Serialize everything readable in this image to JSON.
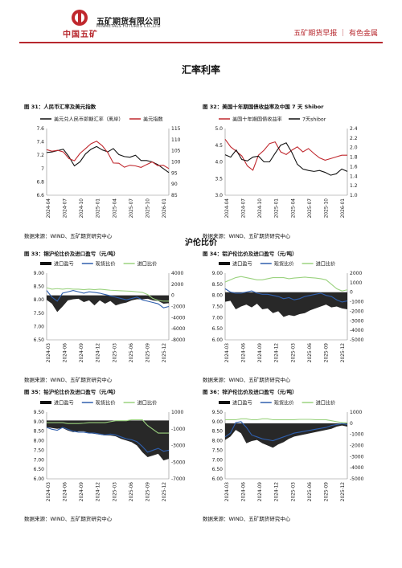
{
  "header": {
    "logo_text": "中国五矿",
    "company_cn": "五矿期货有限公司",
    "company_en": "MINMETALS FUTURES CO.,LTD",
    "report_tag": "五矿期货早报 ｜ 有色金属"
  },
  "sections": {
    "fx_title": "汇率利率",
    "lh_title": "沪伦比价"
  },
  "source_text": "数据来源：WIND、五矿期货研究中心",
  "figures": [
    {
      "title": "图 31：人民币汇率及美元指数"
    },
    {
      "title": "图 32：美国十年期国债收益率及中国 7 天 Shibor"
    },
    {
      "title": "图 33：铜沪伦比价及进口盈亏（元/吨）"
    },
    {
      "title": "图 34：铝沪伦比价及进口盈亏（元/吨）"
    },
    {
      "title": "图 35：铅沪伦比价及进口盈亏（元/吨）"
    },
    {
      "title": "图 36：锌沪伦比价及进口盈亏（元/吨）"
    }
  ],
  "chart_data": [
    {
      "type": "line",
      "legend": [
        "美元兑人民币即期汇率（离岸）",
        "美元指数"
      ],
      "colors": [
        "#111111",
        "#c0282e"
      ],
      "x_ticks": [
        "2024-04",
        "2024-07",
        "2024-10",
        "2025-01",
        "2025-04",
        "2025-07",
        "2025-10",
        "2026-01"
      ],
      "left_ticks": [
        "7.6",
        "7.4",
        "7.2",
        "7",
        "6.8",
        "6.6"
      ],
      "right_ticks": [
        "115",
        "110",
        "105",
        "100",
        "95",
        "90",
        "85"
      ],
      "ylim_left": [
        6.6,
        7.6
      ],
      "ylim_right": [
        85,
        115
      ],
      "x": [
        "2024-04",
        "2024-05",
        "2024-06",
        "2024-07",
        "2024-08",
        "2024-09",
        "2024-10",
        "2024-11",
        "2024-12",
        "2025-01",
        "2025-02",
        "2025-03",
        "2025-04",
        "2025-05",
        "2025-06",
        "2025-07",
        "2025-08",
        "2025-09",
        "2025-10",
        "2025-11",
        "2025-12",
        "2026-01",
        "2026-02"
      ],
      "series": [
        {
          "name": "美元兑人民币即期汇率（离岸）",
          "axis": "left",
          "values": [
            7.24,
            7.25,
            7.27,
            7.29,
            7.18,
            7.04,
            7.1,
            7.22,
            7.29,
            7.33,
            7.28,
            7.25,
            7.3,
            7.21,
            7.18,
            7.17,
            7.2,
            7.12,
            7.12,
            7.1,
            7.06,
            7.0,
            6.94
          ]
        },
        {
          "name": "美元指数",
          "axis": "right",
          "values": [
            105.5,
            104.8,
            105.2,
            104.5,
            101.5,
            100.5,
            103.8,
            106.0,
            108.2,
            109.3,
            107.3,
            104.2,
            99.5,
            99.4,
            97.6,
            98.5,
            98.2,
            97.5,
            98.8,
            100.0,
            98.3,
            98.5,
            97.0
          ]
        }
      ]
    },
    {
      "type": "line",
      "legend": [
        "美国十年期国债收益率",
        "7天shibor"
      ],
      "colors": [
        "#c0282e",
        "#111111"
      ],
      "x_ticks": [
        "2024-04",
        "2024-07",
        "2024-10",
        "2025-01",
        "2025-04",
        "2025-07",
        "2025-10",
        "2026-01"
      ],
      "left_ticks": [
        "5.0",
        "4.5",
        "4.0",
        "3.5",
        "3.0"
      ],
      "right_ticks": [
        "2.4",
        "2.2",
        "2.0",
        "1.8",
        "1.6",
        "1.4",
        "1.2",
        "1.0"
      ],
      "ylim_left": [
        3.0,
        5.0
      ],
      "ylim_right": [
        1.0,
        2.4
      ],
      "x": [
        "2024-04",
        "2024-05",
        "2024-06",
        "2024-07",
        "2024-08",
        "2024-09",
        "2024-10",
        "2024-11",
        "2024-12",
        "2025-01",
        "2025-02",
        "2025-03",
        "2025-04",
        "2025-05",
        "2025-06",
        "2025-07",
        "2025-08",
        "2025-09",
        "2025-10",
        "2025-11",
        "2025-12",
        "2026-01",
        "2026-02"
      ],
      "series": [
        {
          "name": "美国十年期国债收益率",
          "axis": "left",
          "values": [
            4.68,
            4.45,
            4.32,
            4.18,
            3.88,
            3.75,
            4.2,
            4.35,
            4.55,
            4.6,
            4.3,
            4.22,
            4.35,
            4.45,
            4.3,
            4.4,
            4.25,
            4.12,
            4.05,
            4.1,
            4.15,
            4.2,
            4.2
          ]
        },
        {
          "name": "7天shibor",
          "axis": "right",
          "values": [
            1.85,
            1.8,
            1.95,
            1.75,
            1.72,
            1.8,
            1.82,
            1.7,
            1.7,
            1.88,
            2.05,
            2.1,
            1.9,
            1.65,
            1.55,
            1.52,
            1.5,
            1.52,
            1.48,
            1.42,
            1.45,
            1.55,
            1.5
          ]
        }
      ]
    },
    {
      "type": "line",
      "legend": [
        "进口盈亏",
        "现货比价",
        "进口比价"
      ],
      "colors": [
        "#111111",
        "#2f5fad",
        "#9bd27f"
      ],
      "x_ticks": [
        "2024-03",
        "2024-06",
        "2024-09",
        "2024-12",
        "2025-03",
        "2025-06",
        "2025-09",
        "2025-12"
      ],
      "left_ticks": [
        "9.00",
        "8.50",
        "8.00",
        "7.50",
        "7.00",
        "6.50"
      ],
      "right_ticks": [
        "4000",
        "2000",
        "0",
        "-2000",
        "-4000",
        "-6000",
        "-8000"
      ],
      "ylim_left": [
        6.5,
        9.0
      ],
      "ylim_right": [
        -8000,
        4000
      ],
      "x": [
        "2024-03",
        "2024-04",
        "2024-05",
        "2024-06",
        "2024-07",
        "2024-08",
        "2024-09",
        "2024-10",
        "2024-11",
        "2024-12",
        "2025-01",
        "2025-02",
        "2025-03",
        "2025-04",
        "2025-05",
        "2025-06",
        "2025-07",
        "2025-08",
        "2025-09",
        "2025-10",
        "2025-11",
        "2025-12",
        "2026-01",
        "2026-02"
      ],
      "series": [
        {
          "name": "进口盈亏",
          "axis": "right",
          "type": "area",
          "values": [
            -800,
            -1500,
            -3000,
            -2000,
            -900,
            -700,
            -600,
            -1200,
            -900,
            -1800,
            -900,
            -1500,
            -1000,
            -1800,
            -1500,
            -1300,
            -900,
            -700,
            -700,
            -600,
            -900,
            -1000,
            -1500,
            -1400
          ]
        },
        {
          "name": "现货比价",
          "axis": "left",
          "values": [
            8.35,
            8.1,
            7.95,
            8.25,
            8.3,
            8.35,
            8.3,
            8.25,
            8.3,
            8.28,
            8.25,
            8.2,
            8.15,
            8.1,
            8.05,
            8.0,
            8.05,
            8.1,
            8.0,
            7.95,
            7.9,
            7.85,
            7.7,
            7.75
          ]
        },
        {
          "name": "进口比价",
          "axis": "left",
          "values": [
            8.45,
            8.4,
            8.42,
            8.4,
            8.42,
            8.4,
            8.4,
            8.38,
            8.4,
            8.38,
            8.4,
            8.38,
            8.36,
            8.35,
            8.34,
            8.33,
            8.32,
            8.3,
            8.28,
            8.2,
            8.05,
            7.98,
            7.95,
            7.95
          ]
        }
      ]
    },
    {
      "type": "line",
      "legend": [
        "进口盈亏",
        "现货比价",
        "进口比价"
      ],
      "colors": [
        "#111111",
        "#2f5fad",
        "#9bd27f"
      ],
      "x_ticks": [
        "2024-03",
        "2024-06",
        "2024-09",
        "2024-12",
        "2025-03",
        "2025-06",
        "2025-09",
        "2025-12"
      ],
      "left_ticks": [
        "9.00",
        "8.50",
        "8.00",
        "7.50",
        "7.00",
        "6.50",
        "6.00"
      ],
      "right_ticks": [
        "2000",
        "1000",
        "0",
        "-1000",
        "-2000",
        "-3000",
        "-4000",
        "-5000"
      ],
      "ylim_left": [
        6.0,
        9.0
      ],
      "ylim_right": [
        -5000,
        2000
      ],
      "x": [
        "2024-03",
        "2024-04",
        "2024-05",
        "2024-06",
        "2024-07",
        "2024-08",
        "2024-09",
        "2024-10",
        "2024-11",
        "2024-12",
        "2025-01",
        "2025-02",
        "2025-03",
        "2025-04",
        "2025-05",
        "2025-06",
        "2025-07",
        "2025-08",
        "2025-09",
        "2025-10",
        "2025-11",
        "2025-12",
        "2026-01",
        "2026-02"
      ],
      "series": [
        {
          "name": "进口盈亏",
          "axis": "right",
          "type": "area",
          "values": [
            -1000,
            -900,
            -1800,
            -1500,
            -1300,
            -1600,
            -1200,
            -1800,
            -1700,
            -2200,
            -2000,
            -2600,
            -2400,
            -2500,
            -2300,
            -2200,
            -1900,
            -1700,
            -1500,
            -1300,
            -1600,
            -1500,
            -1700,
            -1800
          ]
        },
        {
          "name": "现货比价",
          "axis": "left",
          "values": [
            8.3,
            8.15,
            8.1,
            8.1,
            8.15,
            8.2,
            8.1,
            8.05,
            8.05,
            8.0,
            7.95,
            7.85,
            7.9,
            7.8,
            7.85,
            7.95,
            8.0,
            8.05,
            8.1,
            8.0,
            7.95,
            7.8,
            7.7,
            7.75
          ]
        },
        {
          "name": "进口比价",
          "axis": "left",
          "values": [
            8.6,
            8.7,
            8.8,
            8.85,
            8.8,
            8.75,
            8.7,
            8.7,
            8.75,
            8.8,
            8.8,
            8.8,
            8.75,
            8.78,
            8.8,
            8.82,
            8.8,
            8.78,
            8.75,
            8.7,
            8.5,
            8.3,
            8.2,
            8.25
          ]
        }
      ]
    },
    {
      "type": "line",
      "legend": [
        "进口盈亏",
        "现货比价",
        "进口比价"
      ],
      "colors": [
        "#111111",
        "#2f5fad",
        "#9bd27f"
      ],
      "x_ticks": [
        "2024-03",
        "2024-06",
        "2024-09",
        "2024-12",
        "2025-03",
        "2025-06",
        "2025-09",
        "2025-12"
      ],
      "left_ticks": [
        "9.50",
        "9.00",
        "8.50",
        "8.00",
        "7.50",
        "7.00",
        "6.50",
        "6.00"
      ],
      "right_ticks": [
        "1000",
        "-1000",
        "-3000",
        "-5000",
        "-7000"
      ],
      "ylim_left": [
        6.0,
        9.5
      ],
      "ylim_right": [
        -7000,
        1000
      ],
      "x": [
        "2024-03",
        "2024-04",
        "2024-05",
        "2024-06",
        "2024-07",
        "2024-08",
        "2024-09",
        "2024-10",
        "2024-11",
        "2024-12",
        "2025-01",
        "2025-02",
        "2025-03",
        "2025-04",
        "2025-05",
        "2025-06",
        "2025-07",
        "2025-08",
        "2025-09",
        "2025-10",
        "2025-11",
        "2025-12",
        "2026-01",
        "2026-02"
      ],
      "series": [
        {
          "name": "进口盈亏",
          "axis": "right",
          "type": "area",
          "values": [
            -800,
            -900,
            -1000,
            -900,
            -1200,
            -1400,
            -1300,
            -1300,
            -1500,
            -1600,
            -1700,
            -1800,
            -1800,
            -1900,
            -2200,
            -2400,
            -2600,
            -3000,
            -3800,
            -4400,
            -4200,
            -4000,
            -4800,
            -4600
          ]
        },
        {
          "name": "现货比价",
          "axis": "left",
          "values": [
            8.7,
            8.6,
            8.55,
            8.7,
            8.6,
            8.5,
            8.45,
            8.45,
            8.4,
            8.4,
            8.35,
            8.3,
            8.35,
            8.3,
            8.2,
            8.1,
            8.05,
            7.95,
            7.7,
            7.4,
            7.5,
            7.6,
            7.45,
            7.5
          ]
        },
        {
          "name": "进口比价",
          "axis": "left",
          "values": [
            8.95,
            8.95,
            8.95,
            8.95,
            8.9,
            8.9,
            8.9,
            8.92,
            8.95,
            8.95,
            8.95,
            8.95,
            9.0,
            9.05,
            9.05,
            9.05,
            9.1,
            9.1,
            9.1,
            8.8,
            8.6,
            8.4,
            8.4,
            8.4
          ]
        }
      ]
    },
    {
      "type": "line",
      "legend": [
        "进口盈亏",
        "现货比价",
        "进口比价"
      ],
      "colors": [
        "#111111",
        "#2f5fad",
        "#9bd27f"
      ],
      "x_ticks": [
        "2024-03",
        "2024-06",
        "2024-09",
        "2024-12",
        "2025-03",
        "2025-06",
        "2025-09",
        "2025-12"
      ],
      "left_ticks": [
        "9.50",
        "9.00",
        "8.50",
        "8.00",
        "7.50",
        "7.00",
        "6.50",
        "6.00"
      ],
      "right_ticks": [
        "1000",
        "0",
        "-1000",
        "-2000",
        "-3000",
        "-4000",
        "-5000"
      ],
      "ylim_left": [
        6.0,
        9.5
      ],
      "ylim_right": [
        -5000,
        1000
      ],
      "x": [
        "2024-03",
        "2024-04",
        "2024-05",
        "2024-06",
        "2024-07",
        "2024-08",
        "2024-09",
        "2024-10",
        "2024-11",
        "2024-12",
        "2025-01",
        "2025-02",
        "2025-03",
        "2025-04",
        "2025-05",
        "2025-06",
        "2025-07",
        "2025-08",
        "2025-09",
        "2025-10",
        "2025-11",
        "2025-12",
        "2026-01",
        "2026-02"
      ],
      "series": [
        {
          "name": "进口盈亏",
          "axis": "right",
          "type": "area",
          "values": [
            -1500,
            -1200,
            -600,
            -900,
            -1800,
            -1600,
            -1500,
            -1800,
            -2000,
            -2200,
            -1900,
            -1700,
            -1400,
            -1200,
            -1100,
            -1000,
            -900,
            -800,
            -700,
            -600,
            -500,
            -300,
            -200,
            -300
          ]
        },
        {
          "name": "现货比价",
          "axis": "left",
          "values": [
            8.2,
            8.4,
            8.95,
            9.0,
            8.7,
            8.3,
            8.2,
            8.1,
            8.05,
            8.0,
            8.1,
            8.2,
            8.3,
            8.4,
            8.45,
            8.5,
            8.55,
            8.6,
            8.65,
            8.7,
            8.8,
            8.85,
            8.9,
            8.85
          ]
        },
        {
          "name": "进口比价",
          "axis": "left",
          "values": [
            9.1,
            9.1,
            9.1,
            9.15,
            9.15,
            9.1,
            9.1,
            9.15,
            9.15,
            9.1,
            9.1,
            9.1,
            9.1,
            9.1,
            9.12,
            9.12,
            9.12,
            9.1,
            9.1,
            9.1,
            9.05,
            9.0,
            8.95,
            8.95
          ]
        }
      ]
    }
  ]
}
